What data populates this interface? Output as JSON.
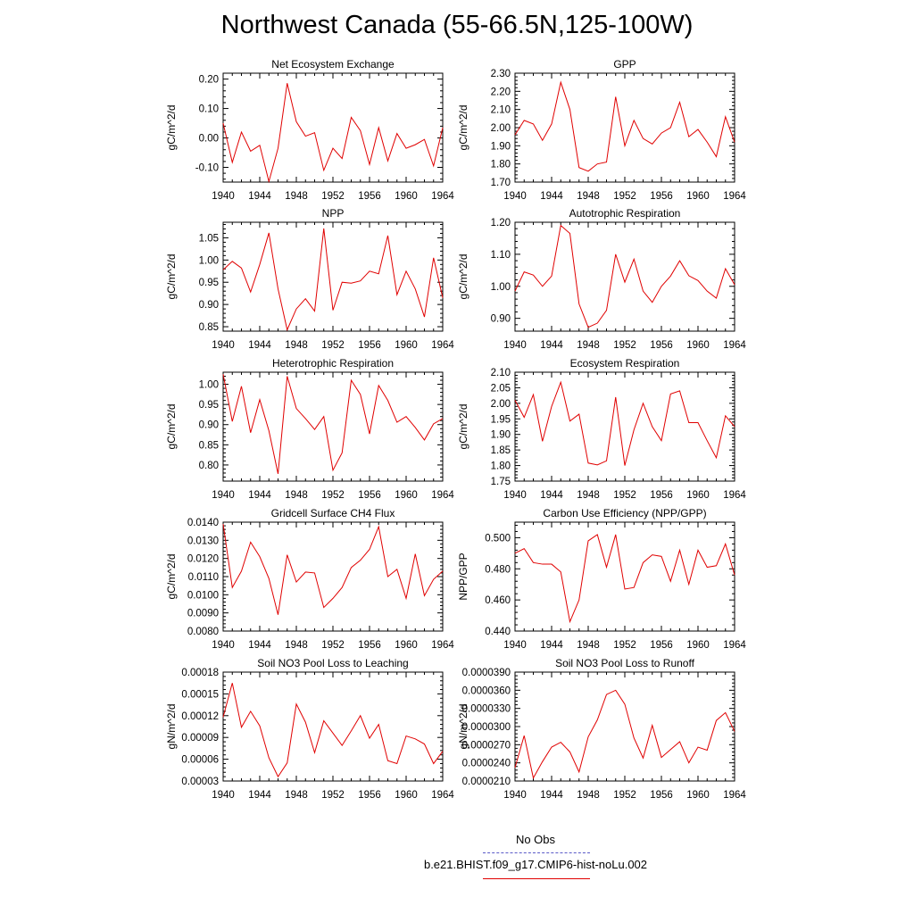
{
  "title": "Northwest Canada (55-66.5N,125-100W)",
  "legend": {
    "obs_label": "No Obs",
    "obs_color": "#5a5ac8",
    "model_label": "b.e21.BHIST.f09_g17.CMIP6-hist-noLu.002",
    "model_color": "#e00000"
  },
  "chart_data": [
    {
      "type": "line",
      "title": "Net Ecosystem Exchange",
      "ylabel": "gC/m^2/d",
      "xlim": [
        1940,
        1964
      ],
      "ylim": [
        -0.15,
        0.22
      ],
      "xticks": [
        "1940",
        "1944",
        "1948",
        "1952",
        "1956",
        "1960",
        "1964"
      ],
      "yticks": [
        "0.20",
        "0.10",
        "0.00",
        "-0.10"
      ],
      "x": [
        1940,
        1941,
        1942,
        1943,
        1944,
        1945,
        1946,
        1947,
        1948,
        1949,
        1950,
        1951,
        1952,
        1953,
        1954,
        1955,
        1956,
        1957,
        1958,
        1959,
        1960,
        1961,
        1962,
        1963,
        1964
      ],
      "series": [
        {
          "color": "#e00000",
          "values": [
            0.05,
            -0.083,
            0.02,
            -0.045,
            -0.025,
            -0.148,
            -0.035,
            0.186,
            0.055,
            0.006,
            0.018,
            -0.11,
            -0.035,
            -0.07,
            0.07,
            0.025,
            -0.09,
            0.035,
            -0.078,
            0.015,
            -0.035,
            -0.023,
            -0.005,
            -0.095,
            0.035
          ]
        }
      ]
    },
    {
      "type": "line",
      "title": "GPP",
      "ylabel": "gC/m^2/d",
      "xlim": [
        1940,
        1964
      ],
      "ylim": [
        1.7,
        2.3
      ],
      "xticks": [
        "1940",
        "1944",
        "1948",
        "1952",
        "1956",
        "1960",
        "1964"
      ],
      "yticks": [
        "2.30",
        "2.20",
        "2.10",
        "2.00",
        "1.90",
        "1.80",
        "1.70"
      ],
      "x": [
        1940,
        1941,
        1942,
        1943,
        1944,
        1945,
        1946,
        1947,
        1948,
        1949,
        1950,
        1951,
        1952,
        1953,
        1954,
        1955,
        1956,
        1957,
        1958,
        1959,
        1960,
        1961,
        1962,
        1963,
        1964
      ],
      "series": [
        {
          "color": "#e00000",
          "values": [
            1.96,
            2.04,
            2.02,
            1.93,
            2.02,
            2.25,
            2.1,
            1.78,
            1.76,
            1.8,
            1.81,
            2.17,
            1.9,
            2.04,
            1.94,
            1.91,
            1.97,
            2.0,
            2.14,
            1.95,
            1.99,
            1.92,
            1.84,
            2.06,
            1.92
          ]
        }
      ]
    },
    {
      "type": "line",
      "title": "NPP",
      "ylabel": "gC/m^2/d",
      "xlim": [
        1940,
        1964
      ],
      "ylim": [
        0.84,
        1.085
      ],
      "xticks": [
        "1940",
        "1944",
        "1948",
        "1952",
        "1956",
        "1960",
        "1964"
      ],
      "yticks": [
        "1.05",
        "1.00",
        "0.95",
        "0.90",
        "0.85"
      ],
      "x": [
        1940,
        1941,
        1942,
        1943,
        1944,
        1945,
        1946,
        1947,
        1948,
        1949,
        1950,
        1951,
        1952,
        1953,
        1954,
        1955,
        1956,
        1957,
        1958,
        1959,
        1960,
        1961,
        1962,
        1963,
        1964
      ],
      "series": [
        {
          "color": "#e00000",
          "values": [
            0.978,
            0.997,
            0.982,
            0.928,
            0.99,
            1.061,
            0.935,
            0.843,
            0.89,
            0.913,
            0.885,
            1.071,
            0.887,
            0.95,
            0.948,
            0.953,
            0.975,
            0.969,
            1.055,
            0.922,
            0.975,
            0.935,
            0.872,
            1.005,
            0.915
          ]
        }
      ]
    },
    {
      "type": "line",
      "title": "Autotrophic Respiration",
      "ylabel": "gC/m^2/d",
      "xlim": [
        1940,
        1964
      ],
      "ylim": [
        0.86,
        1.2
      ],
      "xticks": [
        "1940",
        "1944",
        "1948",
        "1952",
        "1956",
        "1960",
        "1964"
      ],
      "yticks": [
        "1.20",
        "1.10",
        "1.00",
        "0.90"
      ],
      "x": [
        1940,
        1941,
        1942,
        1943,
        1944,
        1945,
        1946,
        1947,
        1948,
        1949,
        1950,
        1951,
        1952,
        1953,
        1954,
        1955,
        1956,
        1957,
        1958,
        1959,
        1960,
        1961,
        1962,
        1963,
        1964
      ],
      "series": [
        {
          "color": "#e00000",
          "values": [
            0.985,
            1.045,
            1.035,
            1.0,
            1.032,
            1.19,
            1.165,
            0.945,
            0.872,
            0.885,
            0.925,
            1.1,
            1.013,
            1.085,
            0.985,
            0.95,
            1.0,
            1.032,
            1.08,
            1.033,
            1.018,
            0.985,
            0.963,
            1.055,
            1.005
          ]
        }
      ]
    },
    {
      "type": "line",
      "title": "Heterotrophic Respiration",
      "ylabel": "gC/m^2/d",
      "xlim": [
        1940,
        1964
      ],
      "ylim": [
        0.76,
        1.03
      ],
      "xticks": [
        "1940",
        "1944",
        "1948",
        "1952",
        "1956",
        "1960",
        "1964"
      ],
      "yticks": [
        "1.00",
        "0.95",
        "0.90",
        "0.85",
        "0.80"
      ],
      "x": [
        1940,
        1941,
        1942,
        1943,
        1944,
        1945,
        1946,
        1947,
        1948,
        1949,
        1950,
        1951,
        1952,
        1953,
        1954,
        1955,
        1956,
        1957,
        1958,
        1959,
        1960,
        1961,
        1962,
        1963,
        1964
      ],
      "series": [
        {
          "color": "#e00000",
          "values": [
            1.025,
            0.908,
            0.995,
            0.88,
            0.962,
            0.885,
            0.778,
            1.02,
            0.94,
            0.915,
            0.888,
            0.92,
            0.787,
            0.83,
            1.01,
            0.975,
            0.877,
            0.997,
            0.96,
            0.906,
            0.92,
            0.893,
            0.862,
            0.902,
            0.915
          ]
        }
      ]
    },
    {
      "type": "line",
      "title": "Ecosystem Respiration",
      "ylabel": "gC/m^2/d",
      "xlim": [
        1940,
        1964
      ],
      "ylim": [
        1.75,
        2.1
      ],
      "xticks": [
        "1940",
        "1944",
        "1948",
        "1952",
        "1956",
        "1960",
        "1964"
      ],
      "yticks": [
        "2.10",
        "2.05",
        "2.00",
        "1.95",
        "1.90",
        "1.85",
        "1.80",
        "1.75"
      ],
      "x": [
        1940,
        1941,
        1942,
        1943,
        1944,
        1945,
        1946,
        1947,
        1948,
        1949,
        1950,
        1951,
        1952,
        1953,
        1954,
        1955,
        1956,
        1957,
        1958,
        1959,
        1960,
        1961,
        1962,
        1963,
        1964
      ],
      "series": [
        {
          "color": "#e00000",
          "values": [
            2.01,
            1.955,
            2.028,
            1.878,
            1.99,
            2.068,
            1.943,
            1.965,
            1.808,
            1.802,
            1.815,
            2.02,
            1.8,
            1.915,
            2.0,
            1.925,
            1.88,
            2.03,
            2.04,
            1.938,
            1.938,
            1.88,
            1.825,
            1.96,
            1.925
          ]
        }
      ]
    },
    {
      "type": "line",
      "title": "Gridcell Surface CH4 Flux",
      "ylabel": "gC/m^2/d",
      "xlim": [
        1940,
        1964
      ],
      "ylim": [
        0.008,
        0.014
      ],
      "xticks": [
        "1940",
        "1944",
        "1948",
        "1952",
        "1956",
        "1960",
        "1964"
      ],
      "yticks": [
        "0.0140",
        "0.0130",
        "0.0120",
        "0.0110",
        "0.0100",
        "0.0090",
        "0.0080"
      ],
      "x": [
        1940,
        1941,
        1942,
        1943,
        1944,
        1945,
        1946,
        1947,
        1948,
        1949,
        1950,
        1951,
        1952,
        1953,
        1954,
        1955,
        1956,
        1957,
        1958,
        1959,
        1960,
        1961,
        1962,
        1963,
        1964
      ],
      "series": [
        {
          "color": "#e00000",
          "values": [
            0.0139,
            0.0104,
            0.0113,
            0.0129,
            0.0121,
            0.0109,
            0.0089,
            0.0122,
            0.0107,
            0.01125,
            0.0112,
            0.0093,
            0.0098,
            0.0104,
            0.0115,
            0.0119,
            0.0125,
            0.01375,
            0.011,
            0.0114,
            0.0098,
            0.01225,
            0.00995,
            0.01085,
            0.0113
          ]
        }
      ]
    },
    {
      "type": "line",
      "title": "Carbon Use Efficiency (NPP/GPP)",
      "ylabel": "NPP/GPP",
      "xlim": [
        1940,
        1964
      ],
      "ylim": [
        0.44,
        0.51
      ],
      "xticks": [
        "1940",
        "1944",
        "1948",
        "1952",
        "1956",
        "1960",
        "1964"
      ],
      "yticks": [
        "0.500",
        "0.480",
        "0.460",
        "0.440"
      ],
      "x": [
        1940,
        1941,
        1942,
        1943,
        1944,
        1945,
        1946,
        1947,
        1948,
        1949,
        1950,
        1951,
        1952,
        1953,
        1954,
        1955,
        1956,
        1957,
        1958,
        1959,
        1960,
        1961,
        1962,
        1963,
        1964
      ],
      "series": [
        {
          "color": "#e00000",
          "values": [
            0.49,
            0.493,
            0.484,
            0.483,
            0.483,
            0.478,
            0.446,
            0.46,
            0.498,
            0.502,
            0.481,
            0.502,
            0.467,
            0.468,
            0.484,
            0.489,
            0.488,
            0.472,
            0.492,
            0.47,
            0.492,
            0.481,
            0.482,
            0.496,
            0.476
          ]
        }
      ]
    },
    {
      "type": "line",
      "title": "Soil NO3 Pool Loss to Leaching",
      "ylabel": "gN/m^2/d",
      "xlim": [
        1940,
        1964
      ],
      "ylim": [
        3e-05,
        0.00018
      ],
      "xticks": [
        "1940",
        "1944",
        "1948",
        "1952",
        "1956",
        "1960",
        "1964"
      ],
      "yticks": [
        "0.00018",
        "0.00015",
        "0.00012",
        "0.00009",
        "0.00006",
        "0.00003"
      ],
      "x": [
        1940,
        1941,
        1942,
        1943,
        1944,
        1945,
        1946,
        1947,
        1948,
        1949,
        1950,
        1951,
        1952,
        1953,
        1954,
        1955,
        1956,
        1957,
        1958,
        1959,
        1960,
        1961,
        1962,
        1963,
        1964
      ],
      "series": [
        {
          "color": "#e00000",
          "values": [
            0.000118,
            0.000165,
            0.000104,
            0.000126,
            0.000106,
            6.2e-05,
            3.6e-05,
            5.5e-05,
            0.000136,
            0.000111,
            6.9e-05,
            0.000113,
            9.6e-05,
            7.9e-05,
            9.9e-05,
            0.00012,
            8.9e-05,
            0.000108,
            5.8e-05,
            5.4e-05,
            9.2e-05,
            8.8e-05,
            8.1e-05,
            5.4e-05,
            7.1e-05
          ]
        }
      ]
    },
    {
      "type": "line",
      "title": "Soil NO3 Pool Loss to Runoff",
      "ylabel": "gN/m^2/d",
      "xlim": [
        1940,
        1964
      ],
      "ylim": [
        2.1e-05,
        3.9e-05
      ],
      "xticks": [
        "1940",
        "1944",
        "1948",
        "1952",
        "1956",
        "1960",
        "1964"
      ],
      "yticks": [
        "0.0000390",
        "0.0000360",
        "0.0000330",
        "0.0000300",
        "0.0000270",
        "0.0000240",
        "0.0000210"
      ],
      "x": [
        1940,
        1941,
        1942,
        1943,
        1944,
        1945,
        1946,
        1947,
        1948,
        1949,
        1950,
        1951,
        1952,
        1953,
        1954,
        1955,
        1956,
        1957,
        1958,
        1959,
        1960,
        1961,
        1962,
        1963,
        1964
      ],
      "series": [
        {
          "color": "#e00000",
          "values": [
            2.32e-05,
            2.85e-05,
            2.15e-05,
            2.42e-05,
            2.66e-05,
            2.74e-05,
            2.58e-05,
            2.25e-05,
            2.83e-05,
            3.11e-05,
            3.53e-05,
            3.6e-05,
            3.37e-05,
            2.81e-05,
            2.48e-05,
            3.02e-05,
            2.49e-05,
            2.62e-05,
            2.75e-05,
            2.4e-05,
            2.66e-05,
            2.61e-05,
            3.1e-05,
            3.23e-05,
            2.92e-05
          ]
        }
      ]
    }
  ]
}
